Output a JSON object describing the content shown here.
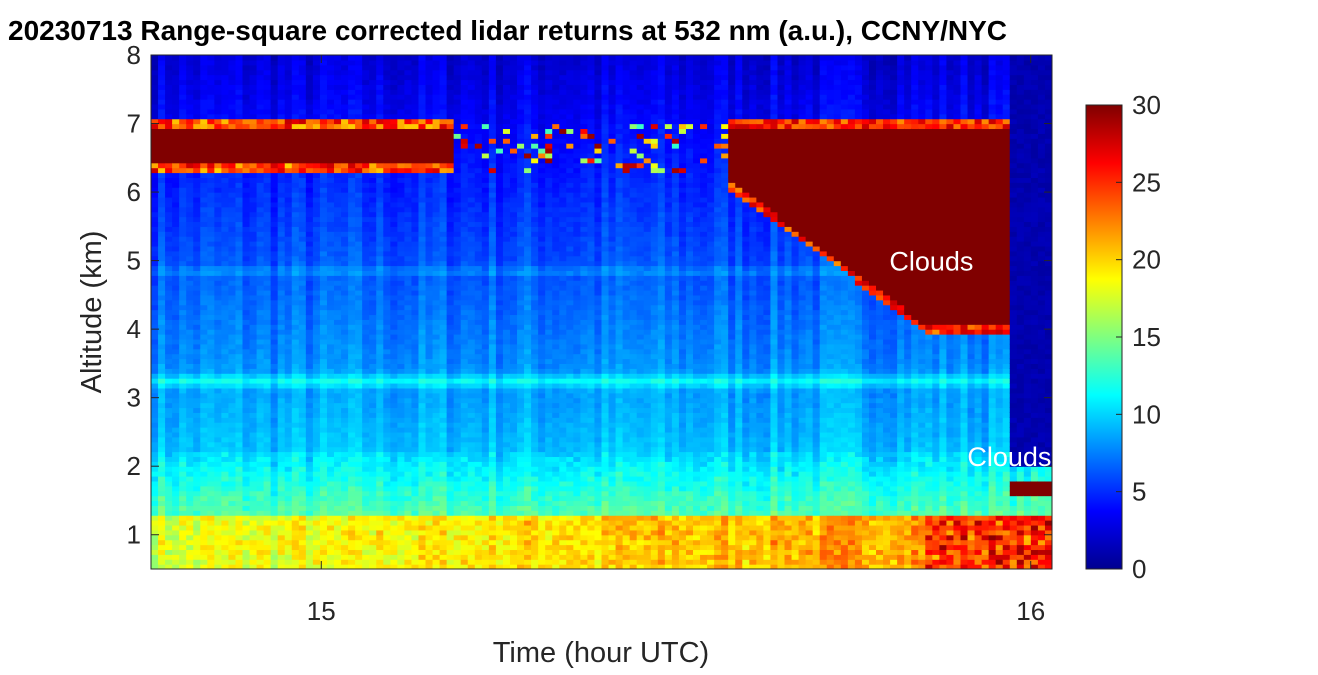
{
  "chart_data": {
    "type": "heatmap",
    "title": "20230713  Range-square corrected lidar returns at 532 nm (a.u.), CCNY/NYC",
    "xlabel": "Time (hour UTC)",
    "ylabel": "Altitude (km)",
    "xlim": [
      14.76,
      16.03
    ],
    "ylim": [
      0.5,
      8
    ],
    "x_ticks": [
      15,
      16
    ],
    "x_tick_labels": [
      "15",
      "16"
    ],
    "y_ticks": [
      1,
      2,
      3,
      4,
      5,
      6,
      7,
      8
    ],
    "y_tick_labels": [
      "1",
      "2",
      "3",
      "4",
      "5",
      "6",
      "7",
      "8"
    ],
    "colorbar": {
      "colormap": "jet",
      "range": [
        0,
        30
      ],
      "ticks": [
        0,
        5,
        10,
        15,
        20,
        25,
        30
      ],
      "tick_labels": [
        "0",
        "5",
        "10",
        "15",
        "20",
        "25",
        "30"
      ]
    },
    "grid": false,
    "annotations": [
      {
        "text": "Clouds",
        "x": 15.86,
        "y": 5.0
      },
      {
        "text": "Clouds",
        "x": 15.97,
        "y": 2.15
      }
    ],
    "layers": {
      "surface_layer": {
        "top_km": 1.3,
        "value_start": 16,
        "value_end": 21
      },
      "boundary_layer_band": {
        "altitude_km": 3.25,
        "value": 11
      },
      "upper_thin_layer": {
        "altitude_km": 4.85,
        "value": 9
      },
      "high_cloud_early": {
        "x_range": [
          14.76,
          15.19
        ],
        "bottom_km": 6.4,
        "top_km": 6.95,
        "value": 30
      },
      "high_cloud_late": {
        "x_range": [
          15.57,
          15.98
        ],
        "bottom_km_start": 6.2,
        "bottom_km_end": 4.05,
        "top_km": 6.95,
        "value": 30
      },
      "low_cloud_late": {
        "x_range": [
          15.97,
          16.03
        ],
        "bottom_km": 1.6,
        "top_km": 1.8,
        "value": 30
      },
      "late_signal_dropout": {
        "x_range": [
          15.97,
          16.03
        ],
        "min_km": 2.0,
        "value": 1
      }
    }
  }
}
